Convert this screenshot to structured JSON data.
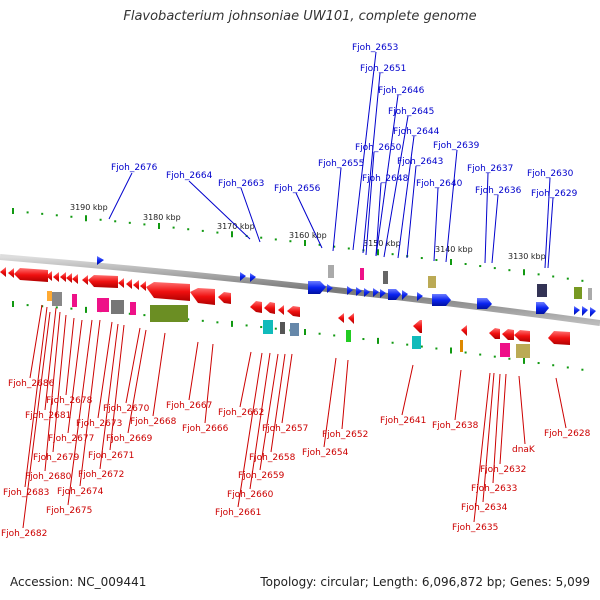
{
  "title": "Flavobacterium johnsoniae UW101, complete genome",
  "footer": {
    "accession": "Accession: NC_009441",
    "summary": "Topology: circular; Length: 6,096,872 bp; Genes: 5,099"
  },
  "colors": {
    "forward_label": "#0000cc",
    "reverse_label": "#cc0000",
    "forward_gene": "#0a24f0",
    "reverse_gene": "#f01010",
    "backbone": "#888888",
    "tick": "#119911"
  },
  "scale": {
    "unit": "kbp",
    "ticks": [
      {
        "label": "3190 kbp"
      },
      {
        "label": "3180 kbp"
      },
      {
        "label": "3170 kbp"
      },
      {
        "label": "3160 kbp"
      },
      {
        "label": "3150 kbp"
      },
      {
        "label": "3140 kbp"
      },
      {
        "label": "3130 kbp"
      }
    ]
  },
  "forward_genes": [
    {
      "label": "Fjoh_2653"
    },
    {
      "label": "Fjoh_2651"
    },
    {
      "label": "Fjoh_2646"
    },
    {
      "label": "Fjoh_2645"
    },
    {
      "label": "Fjoh_2644"
    },
    {
      "label": "Fjoh_2650"
    },
    {
      "label": "Fjoh_2639"
    },
    {
      "label": "Fjoh_2643"
    },
    {
      "label": "Fjoh_2676"
    },
    {
      "label": "Fjoh_2655"
    },
    {
      "label": "Fjoh_2637"
    },
    {
      "label": "Fjoh_2648"
    },
    {
      "label": "Fjoh_2630"
    },
    {
      "label": "Fjoh_2664"
    },
    {
      "label": "Fjoh_2640"
    },
    {
      "label": "Fjoh_2663"
    },
    {
      "label": "Fjoh_2656"
    },
    {
      "label": "Fjoh_2636"
    },
    {
      "label": "Fjoh_2629"
    }
  ],
  "reverse_genes": [
    {
      "label": "Fjoh_2686"
    },
    {
      "label": "Fjoh_2678"
    },
    {
      "label": "Fjoh_2681"
    },
    {
      "label": "Fjoh_2670"
    },
    {
      "label": "Fjoh_2667"
    },
    {
      "label": "Fjoh_2673"
    },
    {
      "label": "Fjoh_2668"
    },
    {
      "label": "Fjoh_2662"
    },
    {
      "label": "Fjoh_2641"
    },
    {
      "label": "Fjoh_2638"
    },
    {
      "label": "Fjoh_2677"
    },
    {
      "label": "Fjoh_2669"
    },
    {
      "label": "Fjoh_2666"
    },
    {
      "label": "Fjoh_2657"
    },
    {
      "label": "Fjoh_2652"
    },
    {
      "label": "Fjoh_2628"
    },
    {
      "label": "Fjoh_2679"
    },
    {
      "label": "Fjoh_2671"
    },
    {
      "label": "Fjoh_2654"
    },
    {
      "label": "dnaK"
    },
    {
      "label": "Fjoh_2658"
    },
    {
      "label": "Fjoh_2632"
    },
    {
      "label": "Fjoh_2680"
    },
    {
      "label": "Fjoh_2672"
    },
    {
      "label": "Fjoh_2659"
    },
    {
      "label": "Fjoh_2683"
    },
    {
      "label": "Fjoh_2674"
    },
    {
      "label": "Fjoh_2633"
    },
    {
      "label": "Fjoh_2660"
    },
    {
      "label": "Fjoh_2634"
    },
    {
      "label": "Fjoh_2675"
    },
    {
      "label": "Fjoh_2661"
    },
    {
      "label": "Fjoh_2635"
    },
    {
      "label": "Fjoh_2682"
    }
  ]
}
